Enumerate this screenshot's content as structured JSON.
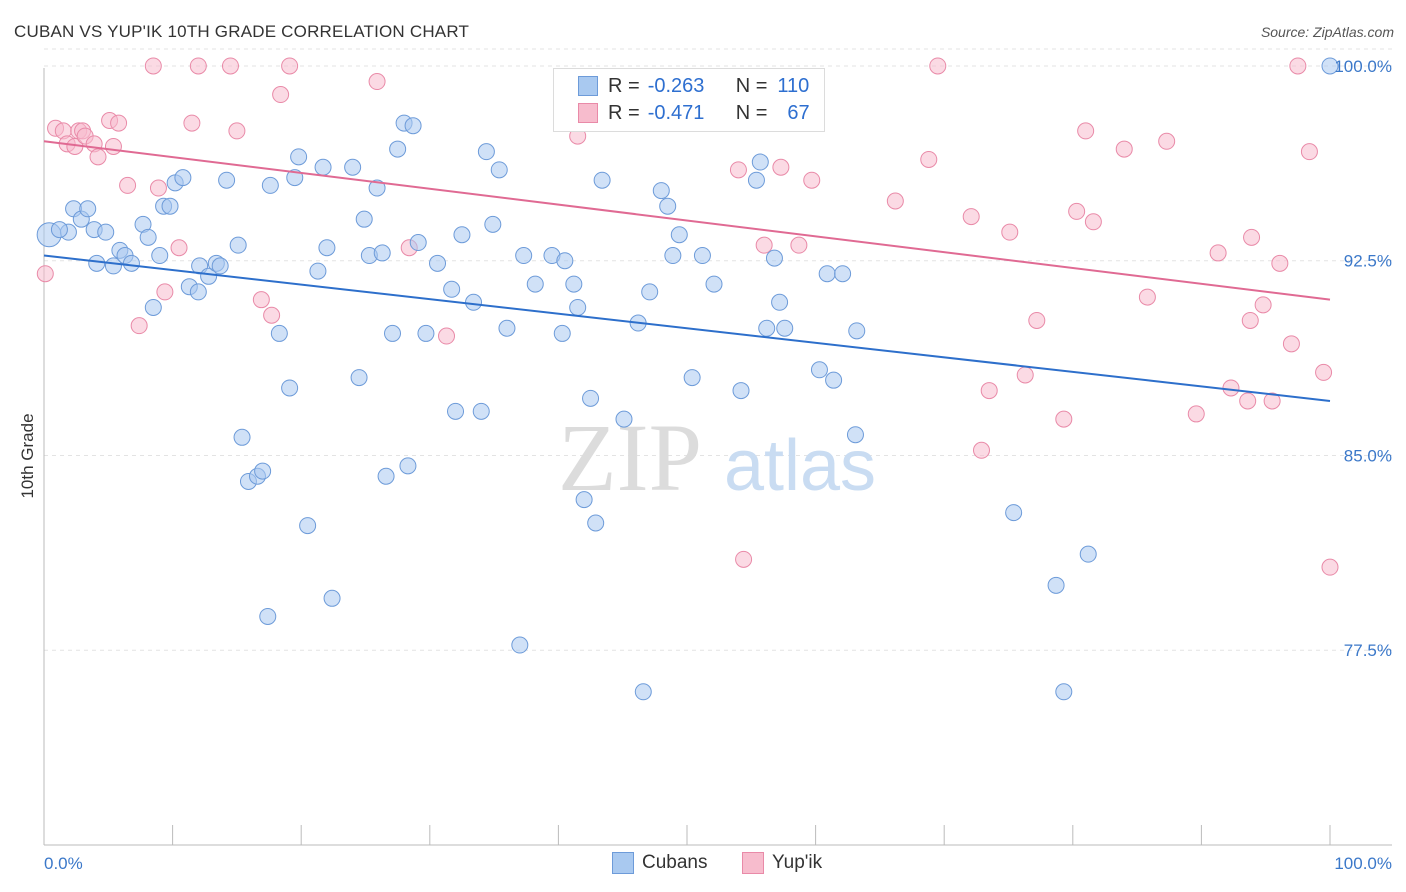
{
  "title": "CUBAN VS YUP'IK 10TH GRADE CORRELATION CHART",
  "source": "Source: ZipAtlas.com",
  "colors": {
    "cubans_fill": "#a9c9f0",
    "cubans_stroke": "#6d9bd9",
    "cubans_line": "#2d6fcb",
    "yupik_fill": "#f7bccd",
    "yupik_stroke": "#e98aa8",
    "yupik_line": "#e06a93",
    "axis_label": "#3b78c9",
    "grid": "#e3e3e3"
  },
  "legend": {
    "rows": [
      {
        "r_label": "R =",
        "r_value": "-0.263",
        "n_label": "N =",
        "n_value": "110"
      },
      {
        "r_label": "R =",
        "r_value": "-0.471",
        "n_label": "N =",
        "n_value": "67"
      }
    ]
  },
  "bottom_legend": [
    "Cubans",
    "Yup'ik"
  ],
  "watermark": {
    "zip": "ZIP",
    "atlas": "atlas"
  },
  "chart_data": {
    "type": "scatter",
    "xlabel": "",
    "ylabel": "10th Grade",
    "xlim": [
      0,
      100
    ],
    "ylim": [
      70.0,
      101.0
    ],
    "x_ticks": [
      "0.0%",
      "100.0%"
    ],
    "y_ticks": [
      {
        "value": 100.0,
        "label": "100.0%"
      },
      {
        "value": 92.5,
        "label": "92.5%"
      },
      {
        "value": 85.0,
        "label": "85.0%"
      },
      {
        "value": 77.5,
        "label": "77.5%"
      }
    ],
    "series": [
      {
        "name": "Cubans",
        "trend": [
          [
            0,
            92.7
          ],
          [
            100,
            87.1
          ]
        ],
        "points": [
          [
            0.4,
            93.5
          ],
          [
            1.9,
            93.6
          ],
          [
            1.2,
            93.7
          ],
          [
            2.3,
            94.5
          ],
          [
            2.9,
            94.1
          ],
          [
            3.4,
            94.5
          ],
          [
            3.9,
            93.7
          ],
          [
            4.1,
            92.4
          ],
          [
            4.8,
            93.6
          ],
          [
            5.4,
            92.3
          ],
          [
            5.9,
            92.9
          ],
          [
            6.3,
            92.7
          ],
          [
            6.8,
            92.4
          ],
          [
            7.7,
            93.9
          ],
          [
            8.1,
            93.4
          ],
          [
            8.5,
            90.7
          ],
          [
            9.0,
            92.7
          ],
          [
            9.3,
            94.6
          ],
          [
            9.8,
            94.6
          ],
          [
            10.2,
            95.5
          ],
          [
            10.8,
            95.7
          ],
          [
            11.3,
            91.5
          ],
          [
            12.0,
            91.3
          ],
          [
            12.1,
            92.3
          ],
          [
            12.8,
            91.9
          ],
          [
            13.4,
            92.4
          ],
          [
            13.7,
            92.3
          ],
          [
            14.2,
            95.6
          ],
          [
            15.1,
            93.1
          ],
          [
            15.4,
            85.7
          ],
          [
            15.9,
            84.0
          ],
          [
            16.6,
            84.2
          ],
          [
            17.4,
            78.8
          ],
          [
            17.0,
            84.4
          ],
          [
            17.6,
            95.4
          ],
          [
            18.3,
            89.7
          ],
          [
            19.1,
            87.6
          ],
          [
            19.5,
            95.7
          ],
          [
            19.8,
            96.5
          ],
          [
            20.5,
            82.3
          ],
          [
            21.3,
            92.1
          ],
          [
            21.7,
            96.1
          ],
          [
            22.0,
            93.0
          ],
          [
            22.4,
            79.5
          ],
          [
            24.0,
            96.1
          ],
          [
            24.5,
            88.0
          ],
          [
            24.9,
            94.1
          ],
          [
            25.3,
            92.7
          ],
          [
            25.9,
            95.3
          ],
          [
            26.3,
            92.8
          ],
          [
            26.6,
            84.2
          ],
          [
            27.1,
            89.7
          ],
          [
            27.5,
            96.8
          ],
          [
            28.0,
            97.8
          ],
          [
            28.3,
            84.6
          ],
          [
            28.7,
            97.7
          ],
          [
            29.1,
            93.2
          ],
          [
            29.7,
            89.7
          ],
          [
            30.6,
            92.4
          ],
          [
            31.7,
            91.4
          ],
          [
            32.0,
            86.7
          ],
          [
            32.5,
            93.5
          ],
          [
            33.4,
            90.9
          ],
          [
            34.0,
            86.7
          ],
          [
            34.4,
            96.7
          ],
          [
            34.9,
            93.9
          ],
          [
            35.4,
            96.0
          ],
          [
            36.0,
            89.9
          ],
          [
            37.0,
            77.7
          ],
          [
            37.3,
            92.7
          ],
          [
            38.2,
            91.6
          ],
          [
            39.5,
            92.7
          ],
          [
            40.3,
            89.7
          ],
          [
            40.5,
            92.5
          ],
          [
            41.2,
            91.6
          ],
          [
            41.5,
            90.7
          ],
          [
            42.0,
            83.3
          ],
          [
            42.5,
            87.2
          ],
          [
            42.9,
            82.4
          ],
          [
            43.4,
            95.6
          ],
          [
            45.1,
            86.4
          ],
          [
            46.2,
            90.1
          ],
          [
            46.6,
            75.9
          ],
          [
            47.1,
            91.3
          ],
          [
            48.0,
            95.2
          ],
          [
            48.5,
            94.6
          ],
          [
            48.9,
            92.7
          ],
          [
            49.4,
            93.5
          ],
          [
            50.4,
            88.0
          ],
          [
            51.2,
            92.7
          ],
          [
            52.1,
            91.6
          ],
          [
            54.2,
            87.5
          ],
          [
            55.4,
            95.6
          ],
          [
            55.7,
            96.3
          ],
          [
            56.2,
            89.9
          ],
          [
            56.8,
            92.6
          ],
          [
            57.2,
            90.9
          ],
          [
            57.6,
            89.9
          ],
          [
            60.3,
            88.3
          ],
          [
            60.9,
            92.0
          ],
          [
            61.4,
            87.9
          ],
          [
            62.1,
            92.0
          ],
          [
            63.1,
            85.8
          ],
          [
            63.2,
            89.8
          ],
          [
            75.4,
            82.8
          ],
          [
            78.7,
            80.0
          ],
          [
            81.2,
            81.2
          ],
          [
            79.3,
            75.9
          ],
          [
            100,
            100.0
          ]
        ]
      },
      {
        "name": "Yup'ik",
        "trend": [
          [
            0,
            97.1
          ],
          [
            100,
            91.0
          ]
        ],
        "points": [
          [
            0.1,
            92.0
          ],
          [
            0.9,
            97.6
          ],
          [
            1.5,
            97.5
          ],
          [
            1.8,
            97.0
          ],
          [
            2.4,
            96.9
          ],
          [
            2.7,
            97.5
          ],
          [
            3.0,
            97.5
          ],
          [
            3.2,
            97.3
          ],
          [
            3.9,
            97.0
          ],
          [
            4.2,
            96.5
          ],
          [
            5.1,
            97.9
          ],
          [
            5.4,
            96.9
          ],
          [
            5.8,
            97.8
          ],
          [
            6.5,
            95.4
          ],
          [
            7.4,
            90.0
          ],
          [
            8.5,
            100.0
          ],
          [
            8.9,
            95.3
          ],
          [
            9.4,
            91.3
          ],
          [
            10.5,
            93.0
          ],
          [
            11.5,
            97.8
          ],
          [
            12.0,
            100.0
          ],
          [
            14.5,
            100.0
          ],
          [
            15.0,
            97.5
          ],
          [
            16.9,
            91.0
          ],
          [
            17.7,
            90.4
          ],
          [
            18.4,
            98.9
          ],
          [
            19.1,
            100.0
          ],
          [
            25.9,
            99.4
          ],
          [
            28.4,
            93.0
          ],
          [
            31.3,
            89.6
          ],
          [
            41.5,
            97.3
          ],
          [
            54.0,
            96.0
          ],
          [
            54.4,
            81.0
          ],
          [
            56.0,
            93.1
          ],
          [
            57.3,
            96.1
          ],
          [
            58.7,
            93.1
          ],
          [
            59.7,
            95.6
          ],
          [
            66.2,
            94.8
          ],
          [
            68.8,
            96.4
          ],
          [
            69.5,
            100.0
          ],
          [
            72.1,
            94.2
          ],
          [
            72.9,
            85.2
          ],
          [
            73.5,
            87.5
          ],
          [
            75.1,
            93.6
          ],
          [
            76.3,
            88.1
          ],
          [
            77.2,
            90.2
          ],
          [
            79.3,
            86.4
          ],
          [
            80.3,
            94.4
          ],
          [
            81.0,
            97.5
          ],
          [
            81.6,
            94.0
          ],
          [
            84.0,
            96.8
          ],
          [
            85.8,
            91.1
          ],
          [
            87.3,
            97.1
          ],
          [
            89.6,
            86.6
          ],
          [
            91.3,
            92.8
          ],
          [
            92.3,
            87.6
          ],
          [
            93.6,
            87.1
          ],
          [
            93.8,
            90.2
          ],
          [
            93.9,
            93.4
          ],
          [
            94.8,
            90.8
          ],
          [
            95.5,
            87.1
          ],
          [
            96.1,
            92.4
          ],
          [
            97.0,
            89.3
          ],
          [
            97.5,
            100.0
          ],
          [
            98.4,
            96.7
          ],
          [
            99.5,
            88.2
          ],
          [
            100.0,
            80.7
          ]
        ]
      }
    ]
  }
}
